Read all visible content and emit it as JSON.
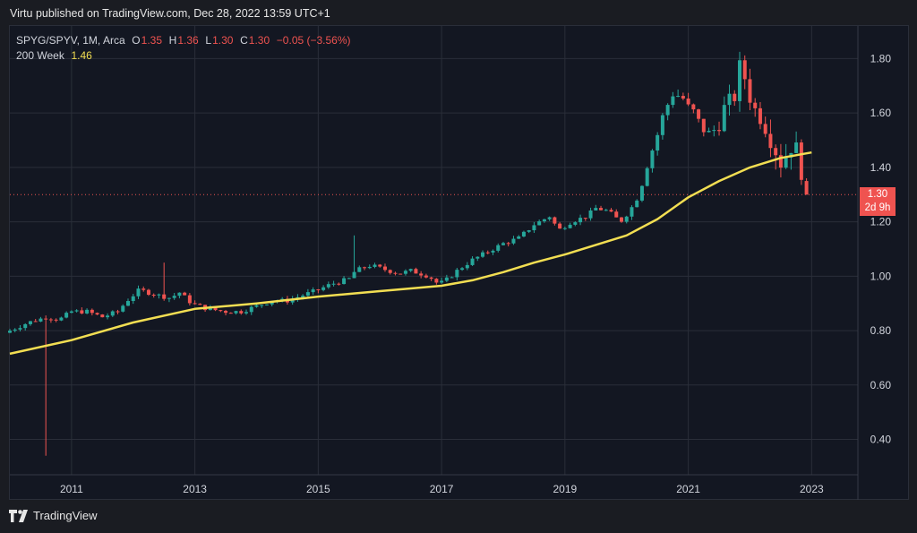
{
  "header": {
    "published": "Virtu published on TradingView.com, Dec 28, 2022 13:59 UTC+1"
  },
  "legend": {
    "symbol": "SPYG/SPYV, 1M, Arca",
    "o_label": "O",
    "o_value": "1.35",
    "h_label": "H",
    "h_value": "1.36",
    "l_label": "L",
    "l_value": "1.30",
    "c_label": "C",
    "c_value": "1.30",
    "change": "−0.05 (−3.56%)",
    "ma_label": "200 Week",
    "ma_value": "1.46"
  },
  "price_tag": {
    "price": "1.30",
    "countdown": "2d 9h"
  },
  "footer": {
    "brand": "TradingView"
  },
  "colors": {
    "up": "#26a69a",
    "down": "#ef5350",
    "ma": "#f2de52",
    "grid": "#2a2e39",
    "background": "#131722",
    "text": "#d1d4dc"
  },
  "chart_data": {
    "type": "candlestick",
    "symbol": "SPYG/SPYV",
    "interval": "1M",
    "xlim": [
      2010.0,
      2023.75
    ],
    "ylim": [
      0.27,
      1.92
    ],
    "x_ticks": [
      "2011",
      "2013",
      "2015",
      "2017",
      "2019",
      "2021",
      "2023"
    ],
    "y_ticks": [
      "0.40",
      "0.60",
      "0.80",
      "1.00",
      "1.20",
      "1.40",
      "1.60",
      "1.80"
    ],
    "last_price": 1.3,
    "grid": true,
    "close_points": [
      [
        2010.0,
        0.8
      ],
      [
        2010.3,
        0.83
      ],
      [
        2010.45,
        0.84
      ],
      [
        2010.6,
        0.85
      ],
      [
        2010.8,
        0.84
      ],
      [
        2011.0,
        0.87
      ],
      [
        2011.25,
        0.87
      ],
      [
        2011.5,
        0.85
      ],
      [
        2011.75,
        0.87
      ],
      [
        2011.9,
        0.91
      ],
      [
        2012.1,
        0.95
      ],
      [
        2012.4,
        0.93
      ],
      [
        2012.6,
        0.92
      ],
      [
        2012.75,
        0.94
      ],
      [
        2012.95,
        0.9
      ],
      [
        2013.2,
        0.88
      ],
      [
        2013.5,
        0.87
      ],
      [
        2013.75,
        0.87
      ],
      [
        2014.0,
        0.89
      ],
      [
        2014.25,
        0.91
      ],
      [
        2014.5,
        0.91
      ],
      [
        2014.75,
        0.93
      ],
      [
        2015.0,
        0.95
      ],
      [
        2015.2,
        0.97
      ],
      [
        2015.5,
        0.99
      ],
      [
        2015.6,
        1.02
      ],
      [
        2015.85,
        1.04
      ],
      [
        2016.0,
        1.03
      ],
      [
        2016.3,
        1.01
      ],
      [
        2016.5,
        1.02
      ],
      [
        2016.8,
        1.0
      ],
      [
        2016.95,
        0.97
      ],
      [
        2017.1,
        0.99
      ],
      [
        2017.25,
        1.02
      ],
      [
        2017.5,
        1.06
      ],
      [
        2017.75,
        1.09
      ],
      [
        2018.0,
        1.12
      ],
      [
        2018.25,
        1.14
      ],
      [
        2018.5,
        1.19
      ],
      [
        2018.75,
        1.22
      ],
      [
        2018.9,
        1.17
      ],
      [
        2019.1,
        1.2
      ],
      [
        2019.35,
        1.22
      ],
      [
        2019.5,
        1.25
      ],
      [
        2019.7,
        1.24
      ],
      [
        2019.9,
        1.2
      ],
      [
        2020.05,
        1.24
      ],
      [
        2020.2,
        1.3
      ],
      [
        2020.35,
        1.42
      ],
      [
        2020.5,
        1.52
      ],
      [
        2020.6,
        1.6
      ],
      [
        2020.75,
        1.67
      ],
      [
        2020.9,
        1.66
      ],
      [
        2021.0,
        1.62
      ],
      [
        2021.1,
        1.6
      ],
      [
        2021.2,
        1.55
      ],
      [
        2021.35,
        1.52
      ],
      [
        2021.5,
        1.56
      ],
      [
        2021.6,
        1.63
      ],
      [
        2021.75,
        1.66
      ],
      [
        2021.85,
        1.79
      ],
      [
        2021.95,
        1.7
      ],
      [
        2022.05,
        1.62
      ],
      [
        2022.2,
        1.58
      ],
      [
        2022.35,
        1.5
      ],
      [
        2022.5,
        1.42
      ],
      [
        2022.6,
        1.45
      ],
      [
        2022.7,
        1.5
      ],
      [
        2022.8,
        1.42
      ],
      [
        2022.9,
        1.35
      ],
      [
        2022.98,
        1.3
      ]
    ],
    "spikes": [
      [
        2010.55,
        0.34
      ],
      [
        2015.55,
        1.15
      ],
      [
        2012.5,
        1.05
      ]
    ],
    "ma_points": [
      [
        2010.0,
        0.715
      ],
      [
        2011.0,
        0.765
      ],
      [
        2012.0,
        0.83
      ],
      [
        2013.0,
        0.88
      ],
      [
        2014.0,
        0.9
      ],
      [
        2015.0,
        0.925
      ],
      [
        2016.0,
        0.945
      ],
      [
        2017.0,
        0.965
      ],
      [
        2017.5,
        0.985
      ],
      [
        2018.0,
        1.015
      ],
      [
        2018.5,
        1.05
      ],
      [
        2019.0,
        1.08
      ],
      [
        2019.5,
        1.115
      ],
      [
        2020.0,
        1.15
      ],
      [
        2020.5,
        1.21
      ],
      [
        2021.0,
        1.29
      ],
      [
        2021.5,
        1.35
      ],
      [
        2022.0,
        1.4
      ],
      [
        2022.5,
        1.435
      ],
      [
        2023.0,
        1.455
      ]
    ]
  }
}
